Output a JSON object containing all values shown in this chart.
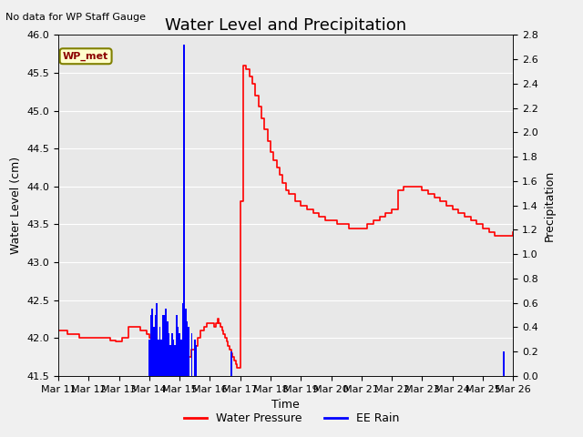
{
  "title": "Water Level and Precipitation",
  "top_left_text": "No data for WP Staff Gauge",
  "xlabel": "Time",
  "ylabel_left": "Water Level (cm)",
  "ylabel_right": "Precipitation",
  "legend_labels": [
    "Water Pressure",
    "EE Rain"
  ],
  "wp_met_label": "WP_met",
  "ylim_left": [
    41.5,
    46.0
  ],
  "ylim_right": [
    0.0,
    2.8
  ],
  "fig_bg": "#f0f0f0",
  "axes_bg": "#e8e8e8",
  "grid_color": "#ffffff",
  "x_tick_labels": [
    "Mar 11",
    "Mar 12",
    "Mar 13",
    "Mar 14",
    "Mar 15",
    "Mar 16",
    "Mar 17",
    "Mar 18",
    "Mar 19",
    "Mar 20",
    "Mar 21",
    "Mar 22",
    "Mar 23",
    "Mar 24",
    "Mar 25",
    "Mar 26"
  ],
  "wp_t": [
    0.0,
    0.15,
    0.3,
    0.5,
    0.7,
    0.9,
    1.1,
    1.3,
    1.5,
    1.7,
    1.9,
    2.1,
    2.3,
    2.5,
    2.7,
    2.9,
    3.0,
    3.1,
    3.2,
    3.3,
    3.4,
    3.5,
    3.6,
    3.7,
    3.8,
    3.9,
    4.0,
    4.1,
    4.2,
    4.3,
    4.4,
    4.5,
    4.6,
    4.7,
    4.8,
    4.9,
    5.0,
    5.05,
    5.1,
    5.15,
    5.2,
    5.25,
    5.3,
    5.35,
    5.4,
    5.45,
    5.5,
    5.55,
    5.6,
    5.65,
    5.7,
    5.75,
    5.8,
    5.85,
    5.9,
    5.95,
    6.0,
    6.1,
    6.2,
    6.3,
    6.4,
    6.5,
    6.6,
    6.7,
    6.8,
    6.9,
    7.0,
    7.1,
    7.2,
    7.3,
    7.4,
    7.5,
    7.6,
    7.8,
    8.0,
    8.2,
    8.4,
    8.6,
    8.8,
    9.0,
    9.2,
    9.4,
    9.6,
    9.8,
    10.0,
    10.2,
    10.4,
    10.6,
    10.8,
    11.0,
    11.2,
    11.4,
    11.6,
    11.8,
    12.0,
    12.2,
    12.4,
    12.6,
    12.8,
    13.0,
    13.2,
    13.4,
    13.6,
    13.8,
    14.0,
    14.2,
    14.4,
    14.6,
    14.8,
    15.0
  ],
  "wp_v": [
    42.1,
    42.1,
    42.05,
    42.05,
    42.0,
    42.0,
    42.0,
    42.0,
    42.0,
    41.97,
    41.95,
    42.0,
    42.15,
    42.15,
    42.1,
    42.05,
    42.0,
    41.95,
    41.85,
    41.75,
    41.65,
    41.6,
    41.55,
    41.55,
    41.55,
    41.55,
    41.55,
    41.6,
    41.65,
    41.75,
    41.85,
    41.9,
    42.0,
    42.1,
    42.15,
    42.2,
    42.2,
    42.2,
    42.2,
    42.15,
    42.2,
    42.25,
    42.2,
    42.15,
    42.1,
    42.05,
    42.0,
    41.95,
    41.9,
    41.85,
    41.8,
    41.75,
    41.7,
    41.65,
    41.6,
    41.6,
    43.8,
    45.6,
    45.55,
    45.45,
    45.35,
    45.2,
    45.05,
    44.9,
    44.75,
    44.6,
    44.45,
    44.35,
    44.25,
    44.15,
    44.05,
    43.95,
    43.9,
    43.8,
    43.75,
    43.7,
    43.65,
    43.6,
    43.55,
    43.55,
    43.5,
    43.5,
    43.45,
    43.45,
    43.45,
    43.5,
    43.55,
    43.6,
    43.65,
    43.7,
    43.95,
    44.0,
    44.0,
    44.0,
    43.95,
    43.9,
    43.85,
    43.8,
    43.75,
    43.7,
    43.65,
    43.6,
    43.55,
    43.5,
    43.45,
    43.4,
    43.35,
    43.35,
    43.35,
    43.4
  ],
  "rain_x": [
    3.0,
    3.05,
    3.1,
    3.15,
    3.2,
    3.25,
    3.3,
    3.35,
    3.4,
    3.45,
    3.5,
    3.55,
    3.6,
    3.65,
    3.7,
    3.75,
    3.8,
    3.85,
    3.9,
    3.95,
    4.0,
    4.05,
    4.1,
    4.15,
    4.2,
    4.25,
    4.3,
    4.4,
    4.5,
    4.55,
    5.7,
    14.7
  ],
  "rain_y": [
    0.3,
    0.5,
    0.55,
    0.4,
    0.5,
    0.6,
    0.3,
    0.4,
    0.3,
    0.5,
    0.5,
    0.55,
    0.45,
    0.35,
    0.25,
    0.35,
    0.3,
    0.25,
    0.5,
    0.4,
    0.35,
    0.3,
    0.6,
    2.72,
    0.55,
    0.45,
    0.4,
    0.35,
    0.3,
    0.25,
    0.2,
    0.2
  ],
  "title_fontsize": 13,
  "label_fontsize": 9,
  "tick_fontsize": 8
}
